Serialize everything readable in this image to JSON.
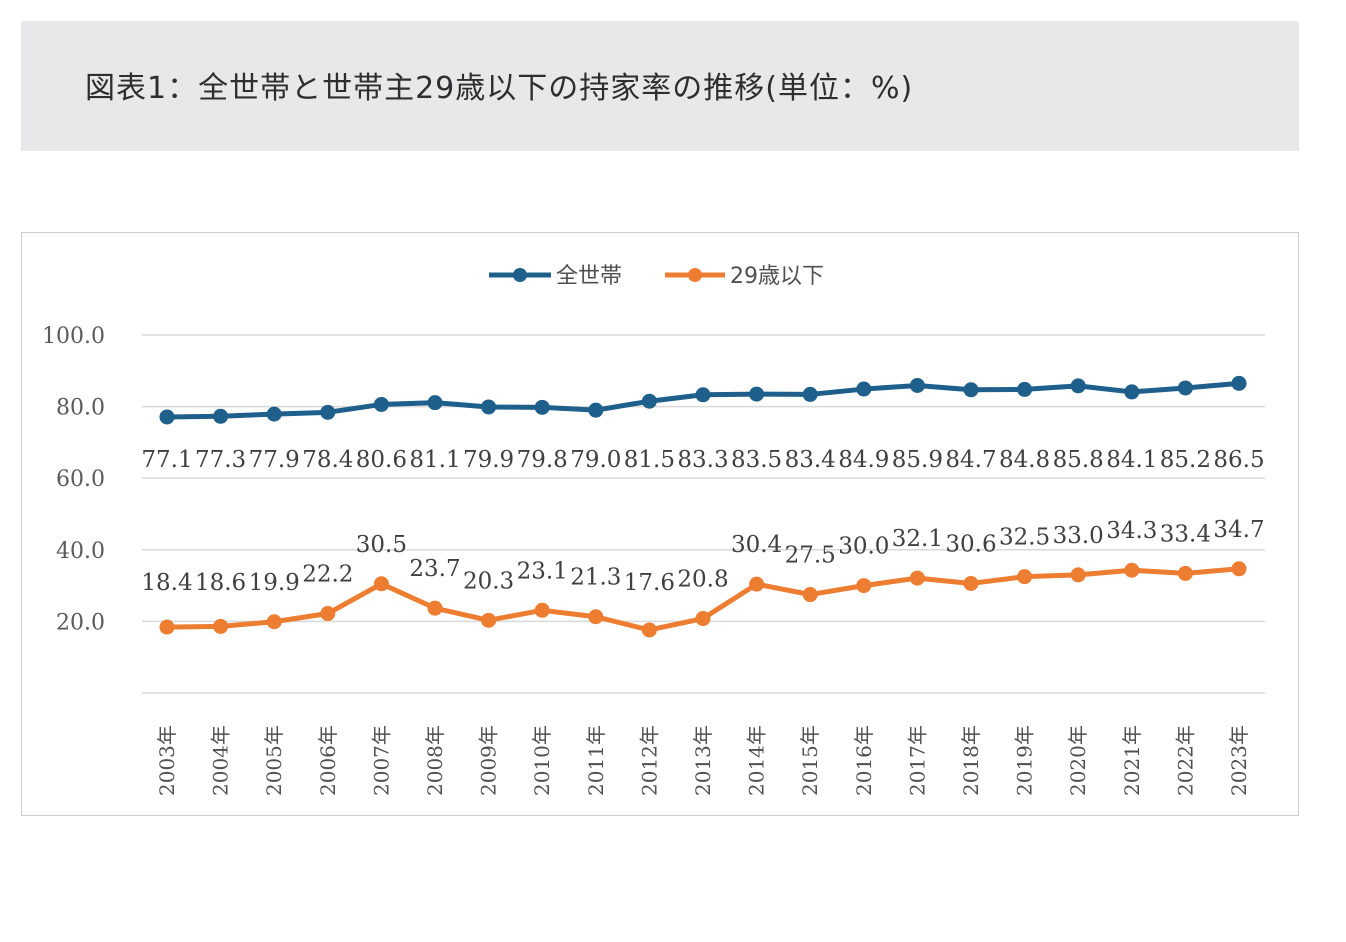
{
  "title": "図表1：全世帯と世帯主29歳以下の持家率の推移(単位：%)",
  "colors": {
    "all_households": "#1f5f8b",
    "under29": "#ed7d31",
    "grid": "#d9d9d9",
    "title_bg": "#e8e8ea"
  },
  "chart_data": {
    "type": "line",
    "title": "",
    "xlabel": "",
    "ylabel": "",
    "ylim": [
      0,
      100
    ],
    "yticks": [
      "20.0",
      "40.0",
      "60.0",
      "80.0",
      "100.0"
    ],
    "legend_position": "top-center",
    "grid": true,
    "categories": [
      "2003年",
      "2004年",
      "2005年",
      "2006年",
      "2007年",
      "2008年",
      "2009年",
      "2010年",
      "2011年",
      "2012年",
      "2013年",
      "2014年",
      "2015年",
      "2016年",
      "2017年",
      "2018年",
      "2019年",
      "2020年",
      "2021年",
      "2022年",
      "2023年"
    ],
    "series": [
      {
        "name": "全世帯",
        "values": [
          77.1,
          77.3,
          77.9,
          78.4,
          80.6,
          81.1,
          79.9,
          79.8,
          79.0,
          81.5,
          83.3,
          83.5,
          83.4,
          84.9,
          85.9,
          84.7,
          84.8,
          85.8,
          84.1,
          85.2,
          86.5
        ],
        "labels": [
          "77.1",
          "77.3",
          "77.9",
          "78.4",
          "80.6",
          "81.1",
          "79.9",
          "79.8",
          "79.0",
          "81.5",
          "83.3",
          "83.5",
          "83.4",
          "84.9",
          "85.9",
          "84.7",
          "84.8",
          "85.8",
          "84.1",
          "85.2",
          "86.5"
        ]
      },
      {
        "name": "29歳以下",
        "values": [
          18.4,
          18.6,
          19.9,
          22.2,
          30.5,
          23.7,
          20.3,
          23.1,
          21.3,
          17.6,
          20.8,
          30.4,
          27.5,
          30.0,
          32.1,
          30.6,
          32.5,
          33.0,
          34.3,
          33.4,
          34.7
        ],
        "labels": [
          "18.4",
          "18.6",
          "19.9",
          "22.2",
          "30.5",
          "23.7",
          "20.3",
          "23.1",
          "21.3",
          "17.6",
          "20.8",
          "30.4",
          "27.5",
          "30.0",
          "32.1",
          "30.6",
          "32.5",
          "33.0",
          "34.3",
          "33.4",
          "34.7"
        ]
      }
    ]
  }
}
